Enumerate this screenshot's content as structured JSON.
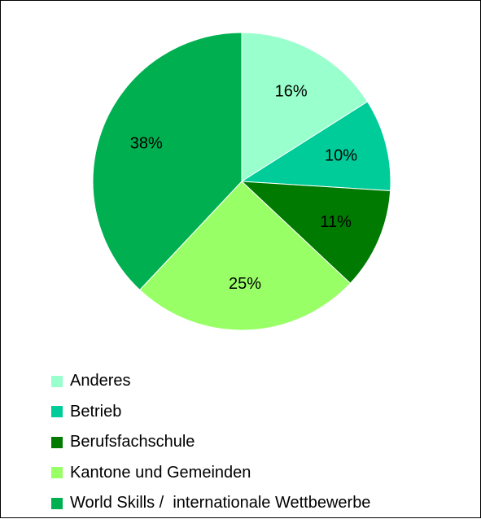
{
  "chart_data": {
    "type": "pie",
    "title": "",
    "slices": [
      {
        "label": "Anderes",
        "value": 16,
        "display": "16%",
        "color": "#99ffcc"
      },
      {
        "label": "Betrieb",
        "value": 10,
        "display": "10%",
        "color": "#00cc99"
      },
      {
        "label": "Berufsfachschule",
        "value": 11,
        "display": "11%",
        "color": "#007a00"
      },
      {
        "label": "Kantone und Gemeinden",
        "value": 25,
        "display": "25%",
        "color": "#99ff66"
      },
      {
        "label": "World Skills /  internationale Wettbewerbe",
        "value": 38,
        "display": "38%",
        "color": "#00b050"
      }
    ],
    "start": "12 o'clock",
    "direction": "clockwise",
    "legend": {
      "position": "bottom-left",
      "orientation": "vertical"
    }
  }
}
